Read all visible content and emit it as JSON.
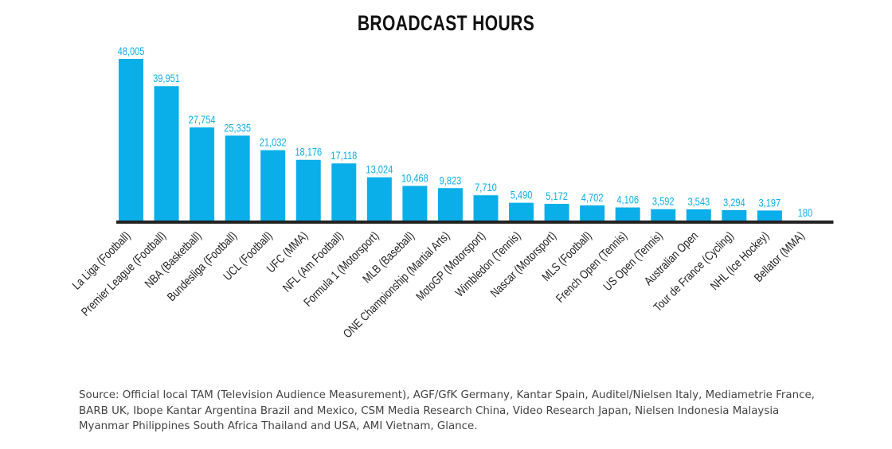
{
  "chart_data": {
    "type": "bar",
    "title": "BROADCAST HOURS",
    "categories": [
      "La Liga (Football)",
      "Premier League (Football)",
      "NBA (Basketball)",
      "Bundesliga (Football)",
      "UCL (Football)",
      "UFC (MMA)",
      "NFL (Am Football)",
      "Formula 1 (Motorsport)",
      "MLB (Baseball)",
      "ONE Championship (Martial Arts)",
      "MotoGP (Motorsport)",
      "Wimbledon (Tennis)",
      "Nascar (Motorsport)",
      "MLS (Football)",
      "French Open (Tennis)",
      "US Open (Tennis)",
      "Australian Open",
      "Tour de France (Cycling)",
      "NHL (Ice Hockey)",
      "Bellator (MMA)"
    ],
    "values": [
      48005,
      39951,
      27754,
      25335,
      21032,
      18176,
      17118,
      13024,
      10468,
      9823,
      7710,
      5490,
      5172,
      4702,
      4106,
      3592,
      3543,
      3294,
      3197,
      180
    ],
    "value_labels": [
      "48,005",
      "39,951",
      "27,754",
      "25,335",
      "21,032",
      "18,176",
      "17,118",
      "13,024",
      "10,468",
      "9,823",
      "7,710",
      "5,490",
      "5,172",
      "4,702",
      "4,106",
      "3,592",
      "3,543",
      "3,294",
      "3,197",
      "180"
    ],
    "xlabel": "",
    "ylabel": "",
    "ylim": [
      0,
      48005
    ],
    "grid": false,
    "legend": "none",
    "colors": {
      "bar": "#0AAFE9",
      "label": "#0AAFE9",
      "axis": "#222222"
    }
  },
  "source_note": "Source: Official local TAM (Television Audience Measurement), AGF/GfK Germany, Kantar Spain, Auditel/Nielsen Italy, Mediametrie France, BARB UK, Ibope Kantar Argentina Brazil and Mexico, CSM Media Research China, Video Research Japan, Nielsen Indonesia Malaysia Myanmar Philippines South Africa Thailand and USA, AMI Vietnam, Glance."
}
